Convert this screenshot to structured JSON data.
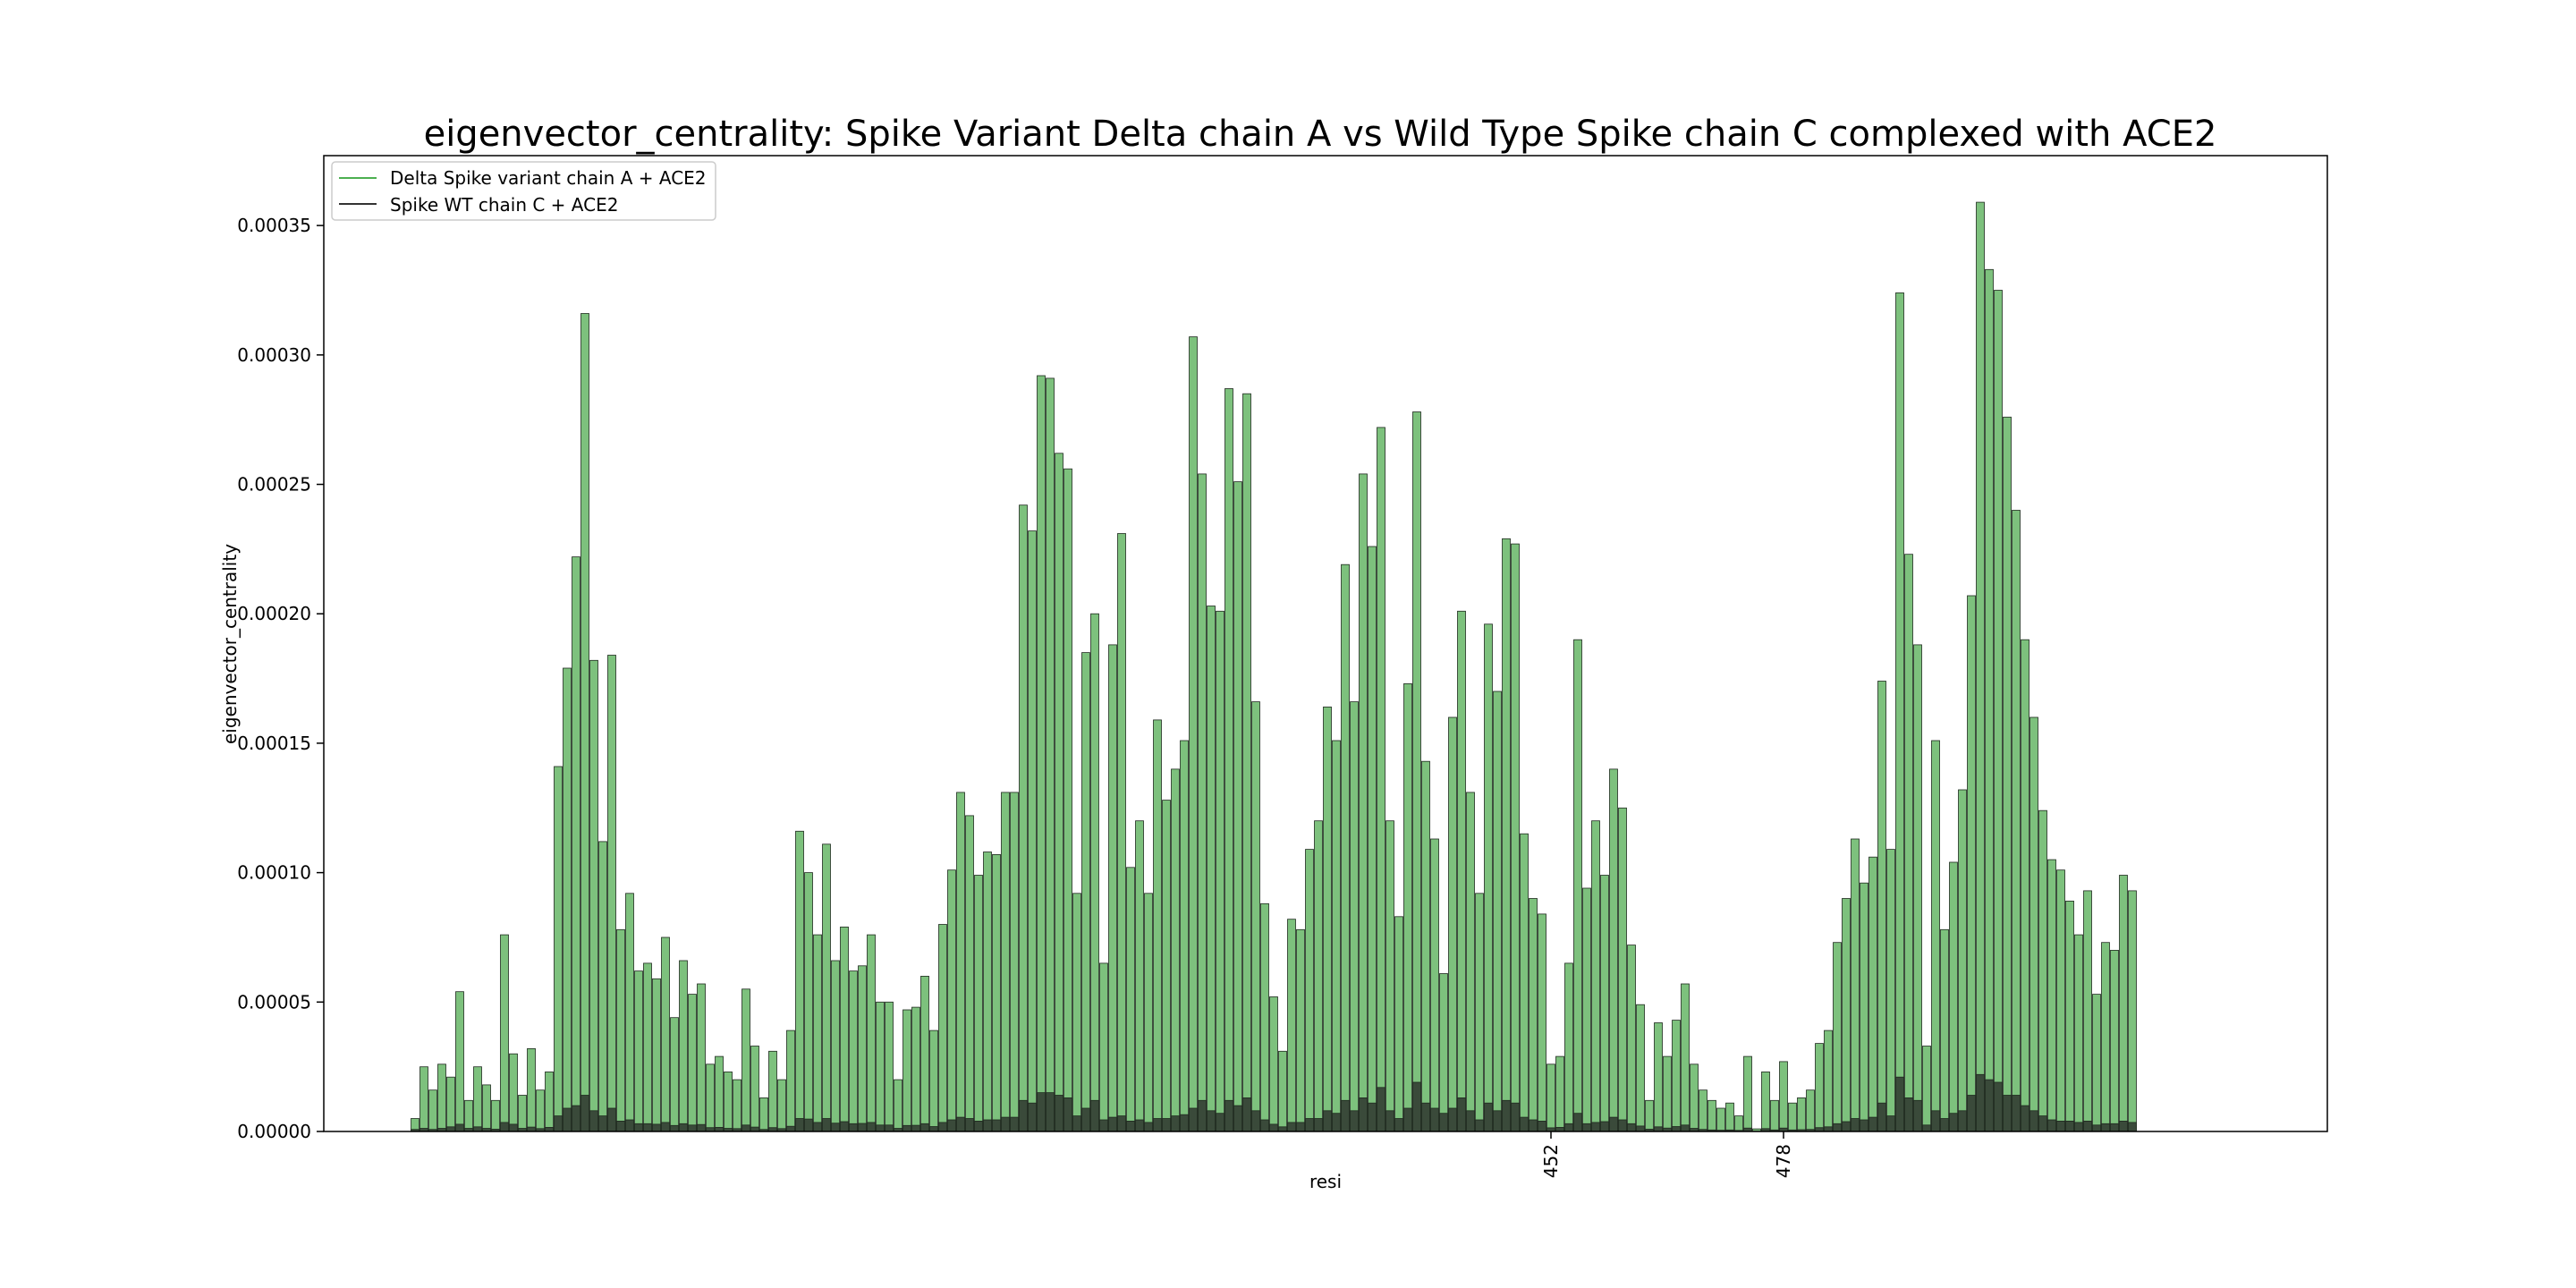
{
  "chart_data": {
    "type": "bar",
    "title": "eigenvector_centrality: Spike Variant Delta chain A vs Wild Type Spike chain C complexed with ACE2",
    "xlabel": "resi",
    "ylabel": "eigenvector_centrality",
    "ylim": [
      0,
      0.000377
    ],
    "yticks": [
      "0.00000",
      "0.00005",
      "0.00010",
      "0.00015",
      "0.00020",
      "0.00025",
      "0.00030",
      "0.00035"
    ],
    "ytick_values": [
      0,
      5e-05,
      0.0001,
      0.00015,
      0.0002,
      0.00025,
      0.0003,
      0.00035
    ],
    "xticks": [
      {
        "label": "452",
        "index": 127
      },
      {
        "label": "478",
        "index": 153
      }
    ],
    "legend": {
      "position": "top-left"
    },
    "colors": {
      "delta": "#7dc17d",
      "wt": "#3a4a3a",
      "delta_legend": "#4caf50",
      "wt_legend": "#333333"
    },
    "series": [
      {
        "name": "Delta Spike variant chain A + ACE2",
        "values": [
          5e-06,
          2.5e-05,
          1.6e-05,
          2.6e-05,
          2.1e-05,
          5.4e-05,
          1.2e-05,
          2.5e-05,
          1.8e-05,
          1.2e-05,
          7.6e-05,
          3e-05,
          1.4e-05,
          3.2e-05,
          1.6e-05,
          2.3e-05,
          0.000141,
          0.000179,
          0.000222,
          0.000316,
          0.000182,
          0.000112,
          0.000184,
          7.8e-05,
          9.2e-05,
          6.2e-05,
          6.5e-05,
          5.9e-05,
          7.5e-05,
          4.4e-05,
          6.6e-05,
          5.3e-05,
          5.7e-05,
          2.6e-05,
          2.9e-05,
          2.3e-05,
          2e-05,
          5.5e-05,
          3.3e-05,
          1.3e-05,
          3.1e-05,
          2e-05,
          3.9e-05,
          0.000116,
          0.0001,
          7.6e-05,
          0.000111,
          6.6e-05,
          7.9e-05,
          6.2e-05,
          6.4e-05,
          7.6e-05,
          5e-05,
          5e-05,
          2e-05,
          4.7e-05,
          4.8e-05,
          6e-05,
          3.9e-05,
          8e-05,
          0.000101,
          0.000131,
          0.000122,
          9.9e-05,
          0.000108,
          0.000107,
          0.000131,
          0.000131,
          0.000242,
          0.000232,
          0.000292,
          0.000291,
          0.000262,
          0.000256,
          9.2e-05,
          0.000185,
          0.0002,
          6.5e-05,
          0.000188,
          0.000231,
          0.000102,
          0.00012,
          9.2e-05,
          0.000159,
          0.000128,
          0.00014,
          0.000151,
          0.000307,
          0.000254,
          0.000203,
          0.000201,
          0.000287,
          0.000251,
          0.000285,
          0.000166,
          8.8e-05,
          5.2e-05,
          3.1e-05,
          8.2e-05,
          7.8e-05,
          0.000109,
          0.00012,
          0.000164,
          0.000151,
          0.000219,
          0.000166,
          0.000254,
          0.000226,
          0.000272,
          0.00012,
          8.3e-05,
          0.000173,
          0.000278,
          0.000143,
          0.000113,
          6.1e-05,
          0.00016,
          0.000201,
          0.000131,
          9.2e-05,
          0.000196,
          0.00017,
          0.000229,
          0.000227,
          0.000115,
          9e-05,
          8.4e-05,
          2.6e-05,
          2.9e-05,
          6.5e-05,
          0.00019,
          9.4e-05,
          0.00012,
          9.9e-05,
          0.00014,
          0.000125,
          7.2e-05,
          4.9e-05,
          1.2e-05,
          4.2e-05,
          2.9e-05,
          4.3e-05,
          5.7e-05,
          2.6e-05,
          1.6e-05,
          1.2e-05,
          9e-06,
          1.1e-05,
          6e-06,
          2.9e-05,
          1e-06,
          2.3e-05,
          1.2e-05,
          2.7e-05,
          1.1e-05,
          1.3e-05,
          1.6e-05,
          3.4e-05,
          3.9e-05,
          7.3e-05,
          9e-05,
          0.000113,
          9.6e-05,
          0.000106,
          0.000174,
          0.000109,
          0.000324,
          0.000223,
          0.000188,
          3.3e-05,
          0.000151,
          7.8e-05,
          0.000104,
          0.000132,
          0.000207,
          0.000359,
          0.000333,
          0.000325,
          0.000276,
          0.00024,
          0.00019,
          0.00016,
          0.000124,
          0.000105,
          0.000101,
          8.9e-05,
          7.6e-05,
          9.3e-05,
          5.3e-05,
          7.3e-05,
          7e-05,
          9.9e-05,
          9.3e-05
        ]
      },
      {
        "name": "Spike WT chain C + ACE2",
        "values": [
          8e-07,
          1.2e-06,
          8e-07,
          1.2e-06,
          1.8e-06,
          2.8e-06,
          1.2e-06,
          1.8e-06,
          1.2e-06,
          9e-07,
          3.5e-06,
          2.8e-06,
          1.2e-06,
          1.7e-06,
          1.1e-06,
          1.6e-06,
          6e-06,
          9e-06,
          1e-05,
          1.4e-05,
          8e-06,
          6e-06,
          9e-06,
          4e-06,
          4.5e-06,
          3e-06,
          3e-06,
          2.8e-06,
          3.5e-06,
          2.3e-06,
          3e-06,
          2.5e-06,
          2.7e-06,
          1.5e-06,
          1.6e-06,
          1.2e-06,
          1.1e-06,
          2.5e-06,
          1.7e-06,
          8e-07,
          1.5e-06,
          1.1e-06,
          2e-06,
          5e-06,
          4.8e-06,
          3.5e-06,
          5e-06,
          3.2e-06,
          3.8e-06,
          3e-06,
          3.1e-06,
          3.5e-06,
          2.5e-06,
          2.5e-06,
          1.2e-06,
          2.3e-06,
          2.4e-06,
          3e-06,
          1.9e-06,
          3.5e-06,
          4.5e-06,
          5.5e-06,
          5e-06,
          4e-06,
          4.5e-06,
          4.5e-06,
          5.5e-06,
          5.5e-06,
          1.2e-05,
          1.1e-05,
          1.5e-05,
          1.5e-05,
          1.4e-05,
          1.3e-05,
          6e-06,
          9e-06,
          1.2e-05,
          4.5e-06,
          5.5e-06,
          6e-06,
          4e-06,
          4.5e-06,
          3.5e-06,
          5e-06,
          5e-06,
          6e-06,
          6.5e-06,
          9e-06,
          1.2e-05,
          8e-06,
          7e-06,
          1.2e-05,
          1e-05,
          1.3e-05,
          8e-06,
          4.5e-06,
          2.8e-06,
          1.8e-06,
          3.5e-06,
          3.5e-06,
          5e-06,
          5e-06,
          8e-06,
          7e-06,
          1.2e-05,
          8e-06,
          1.3e-05,
          1.1e-05,
          1.7e-05,
          8e-06,
          5e-06,
          9e-06,
          1.9e-05,
          1.1e-05,
          9e-06,
          7e-06,
          9e-06,
          1.3e-05,
          8e-06,
          4.5e-06,
          1.1e-05,
          8e-06,
          1.2e-05,
          1.1e-05,
          5.5e-06,
          4.5e-06,
          4e-06,
          1.4e-06,
          1.6e-06,
          3e-06,
          7e-06,
          3e-06,
          3.5e-06,
          3.8e-06,
          5.5e-06,
          4.5e-06,
          3e-06,
          2.1e-06,
          9e-07,
          1.8e-06,
          1.3e-06,
          1.9e-06,
          2.5e-06,
          1.2e-06,
          8e-07,
          6e-07,
          5e-07,
          6e-07,
          4e-07,
          1.3e-06,
          1e-07,
          1.1e-06,
          6e-07,
          1.3e-06,
          6e-07,
          7e-07,
          8e-07,
          1.5e-06,
          1.8e-06,
          3e-06,
          3.8e-06,
          5e-06,
          4.5e-06,
          5.5e-06,
          1.1e-05,
          6e-06,
          2.1e-05,
          1.3e-05,
          1.2e-05,
          2.5e-06,
          8e-06,
          5e-06,
          7e-06,
          8e-06,
          1.4e-05,
          2.2e-05,
          2e-05,
          1.9e-05,
          1.4e-05,
          1.4e-05,
          1e-05,
          8e-06,
          6e-06,
          4.5e-06,
          4e-06,
          4e-06,
          3.5e-06,
          4e-06,
          2.5e-06,
          3e-06,
          3e-06,
          4e-06,
          3.5e-06
        ]
      }
    ]
  }
}
